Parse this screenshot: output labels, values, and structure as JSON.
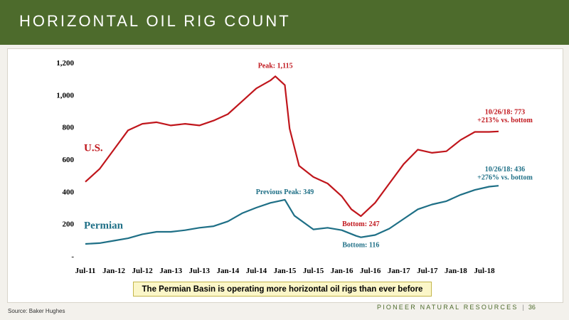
{
  "slide": {
    "title": "HORIZONTAL OIL RIG COUNT",
    "callout": "The Permian Basin is operating more horizontal oil rigs than ever before",
    "source": "Source: Baker Hughes",
    "company": "PIONEER NATURAL RESOURCES",
    "separator": "|",
    "page_number": "36"
  },
  "colors": {
    "header": "#4d6b2c",
    "us_series": "#c0161c",
    "permian_series": "#1e6f86",
    "callout_fill": "#fbf6c8"
  },
  "chart_data": {
    "type": "line",
    "title": "",
    "xlabel": "",
    "ylabel": "",
    "ylim": [
      0,
      1200
    ],
    "yticks": [
      0,
      200,
      400,
      600,
      800,
      1000,
      1200
    ],
    "ytick_labels": [
      "-",
      "200",
      "400",
      "600",
      "800",
      "1,000",
      "1,200"
    ],
    "xlim": [
      "2011-07",
      "2018-12"
    ],
    "xticks": [
      "2011-07",
      "2012-01",
      "2012-07",
      "2013-01",
      "2013-07",
      "2014-01",
      "2014-07",
      "2015-01",
      "2015-07",
      "2016-01",
      "2016-07",
      "2017-01",
      "2017-07",
      "2018-01",
      "2018-07"
    ],
    "xtick_labels": [
      "Jul-11",
      "Jan-12",
      "Jul-12",
      "Jan-13",
      "Jul-13",
      "Jan-14",
      "Jul-14",
      "Jan-15",
      "Jul-15",
      "Jan-16",
      "Jul-16",
      "Jan-17",
      "Jul-17",
      "Jan-18",
      "Jul-18"
    ],
    "grid": false,
    "legend": "none",
    "series": [
      {
        "name": "U.S.",
        "x": [
          "2011-07",
          "2011-10",
          "2012-01",
          "2012-04",
          "2012-07",
          "2012-10",
          "2013-01",
          "2013-04",
          "2013-07",
          "2013-10",
          "2014-01",
          "2014-04",
          "2014-07",
          "2014-10",
          "2014-11",
          "2015-01",
          "2015-02",
          "2015-04",
          "2015-07",
          "2015-10",
          "2016-01",
          "2016-03",
          "2016-05",
          "2016-08",
          "2016-11",
          "2017-02",
          "2017-05",
          "2017-08",
          "2017-11",
          "2018-02",
          "2018-05",
          "2018-08",
          "2018-10"
        ],
        "values": [
          460,
          540,
          660,
          780,
          820,
          830,
          810,
          820,
          810,
          840,
          880,
          960,
          1040,
          1090,
          1115,
          1060,
          790,
          560,
          490,
          450,
          370,
          290,
          247,
          330,
          450,
          570,
          660,
          640,
          650,
          720,
          770,
          770,
          773
        ]
      },
      {
        "name": "Permian",
        "x": [
          "2011-07",
          "2011-10",
          "2012-01",
          "2012-04",
          "2012-07",
          "2012-10",
          "2013-01",
          "2013-04",
          "2013-07",
          "2013-10",
          "2014-01",
          "2014-04",
          "2014-07",
          "2014-10",
          "2015-01",
          "2015-03",
          "2015-07",
          "2015-10",
          "2016-01",
          "2016-04",
          "2016-05",
          "2016-08",
          "2016-11",
          "2017-02",
          "2017-05",
          "2017-08",
          "2017-11",
          "2018-02",
          "2018-05",
          "2018-08",
          "2018-10"
        ],
        "values": [
          75,
          80,
          95,
          110,
          135,
          150,
          150,
          160,
          175,
          185,
          215,
          265,
          300,
          330,
          349,
          250,
          165,
          175,
          160,
          125,
          116,
          130,
          170,
          230,
          290,
          320,
          340,
          380,
          410,
          430,
          436
        ]
      }
    ],
    "annotations": [
      {
        "series": "U.S.",
        "text": "Peak: 1,115",
        "x": "2014-11",
        "y": 1115
      },
      {
        "series": "U.S.",
        "text": "Bottom: 247",
        "x": "2016-05",
        "y": 247
      },
      {
        "series": "U.S.",
        "text": "10/26/18: 773",
        "x": "2018-10",
        "y": 773
      },
      {
        "series": "U.S.",
        "text": "+213% vs. bottom",
        "x": "2018-10",
        "y": 773
      },
      {
        "series": "Permian",
        "text": "Previous Peak: 349",
        "x": "2015-01",
        "y": 349
      },
      {
        "series": "Permian",
        "text": "Bottom: 116",
        "x": "2016-05",
        "y": 116
      },
      {
        "series": "Permian",
        "text": "10/26/18: 436",
        "x": "2018-10",
        "y": 436
      },
      {
        "series": "Permian",
        "text": "+276% vs. bottom",
        "x": "2018-10",
        "y": 436
      }
    ]
  }
}
